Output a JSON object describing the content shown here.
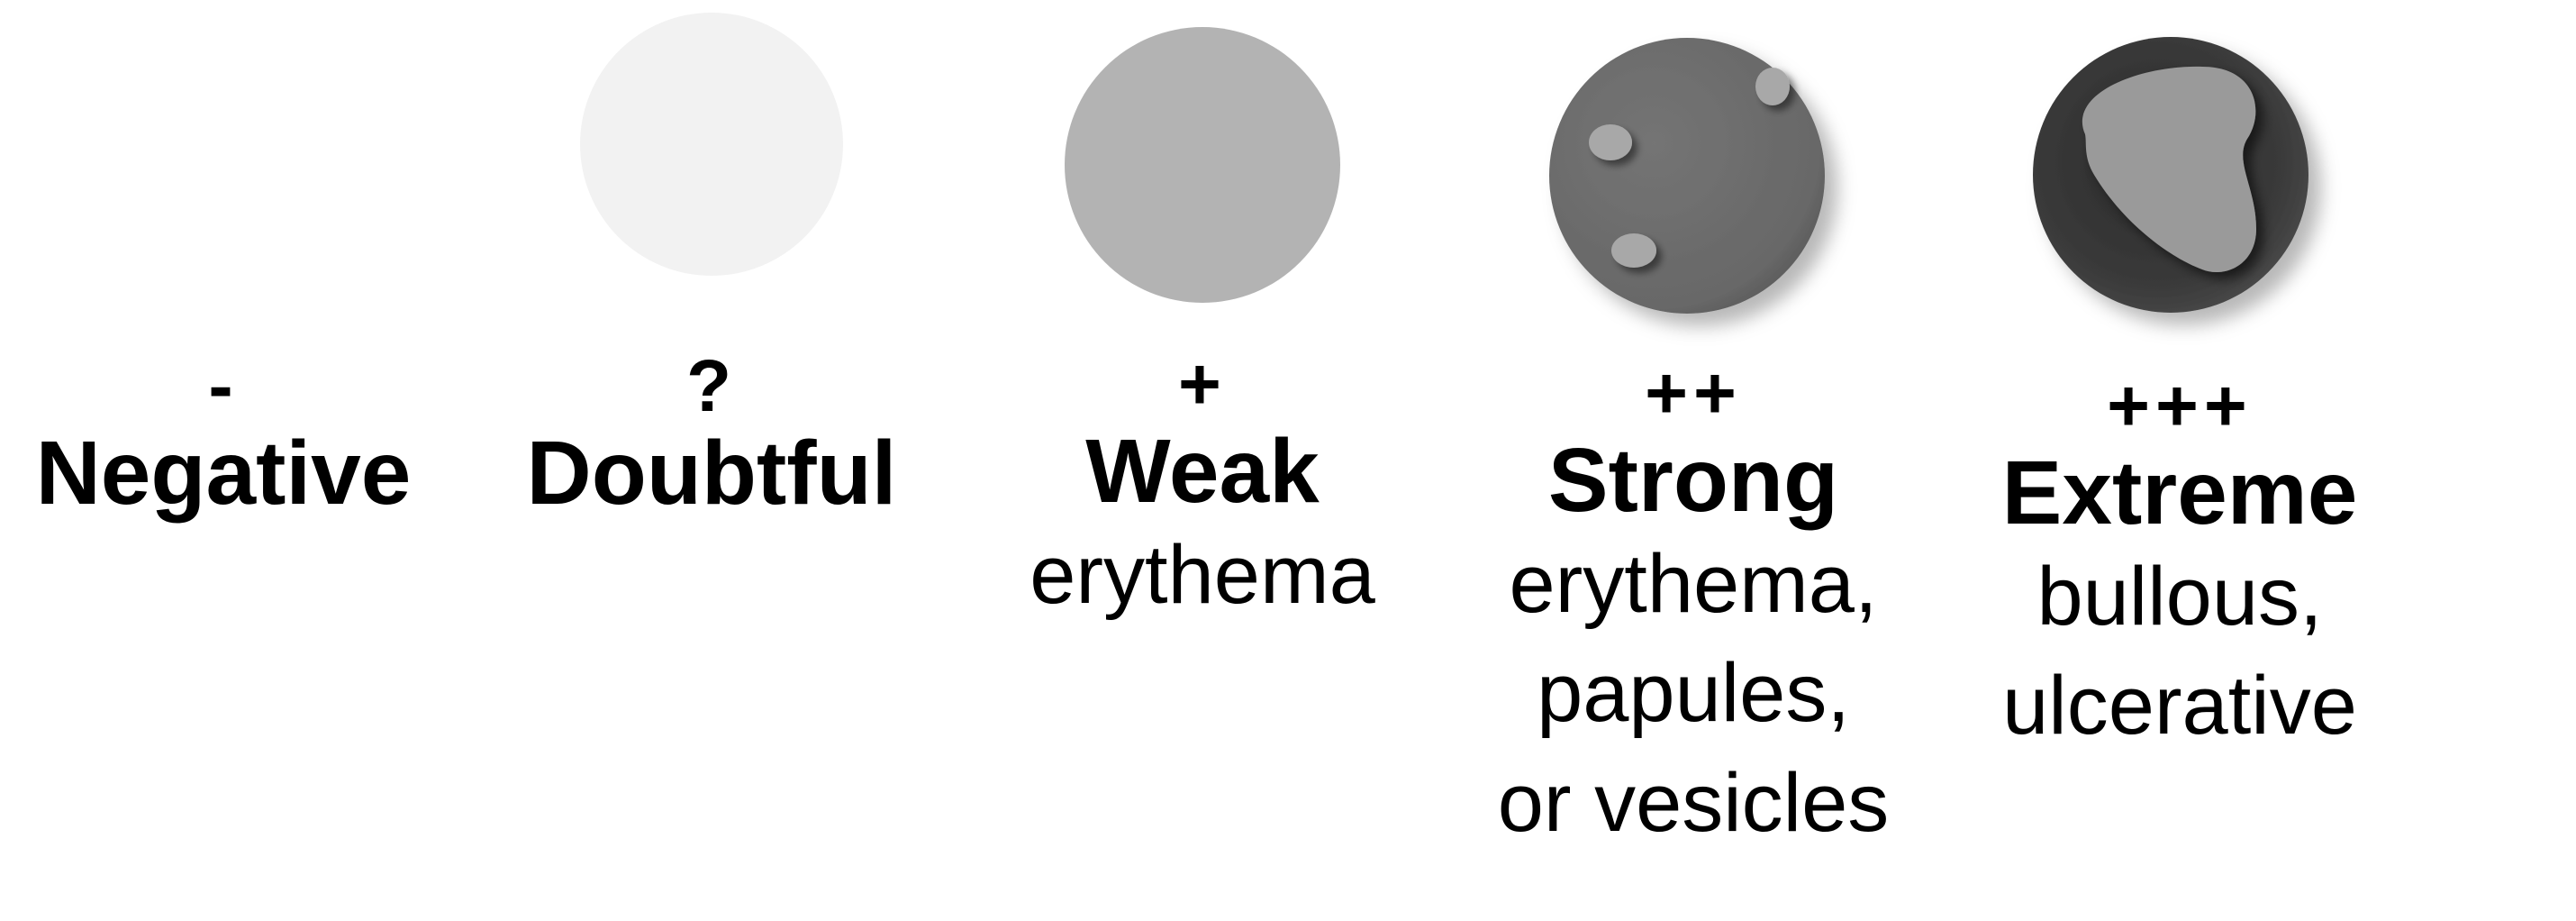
{
  "grades": [
    {
      "symbol": "-",
      "name": "Negative",
      "description": [],
      "lesion": {
        "fill": "#ffffff",
        "shadow": false
      }
    },
    {
      "symbol": "?",
      "name": "Doubtful",
      "description": [],
      "lesion": {
        "fill": "#f2f2f2",
        "shadow": false
      }
    },
    {
      "symbol": "+",
      "name": "Weak",
      "description": [
        "erythema"
      ],
      "lesion": {
        "fill": "#b3b3b3",
        "shadow": false
      }
    },
    {
      "symbol": "++",
      "name": "Strong",
      "description": [
        "erythema,",
        "papules,",
        "or vesicles"
      ],
      "lesion": {
        "fill": "#6e6e6e",
        "shadow": true,
        "papule_fill": "#a8a8a8"
      }
    },
    {
      "symbol": "+++",
      "name": "Extreme",
      "description": [
        "bullous,",
        "ulcerative"
      ],
      "lesion": {
        "fill": "#404040",
        "shadow": true,
        "bulla_fill": "#9a9a9a"
      }
    }
  ]
}
